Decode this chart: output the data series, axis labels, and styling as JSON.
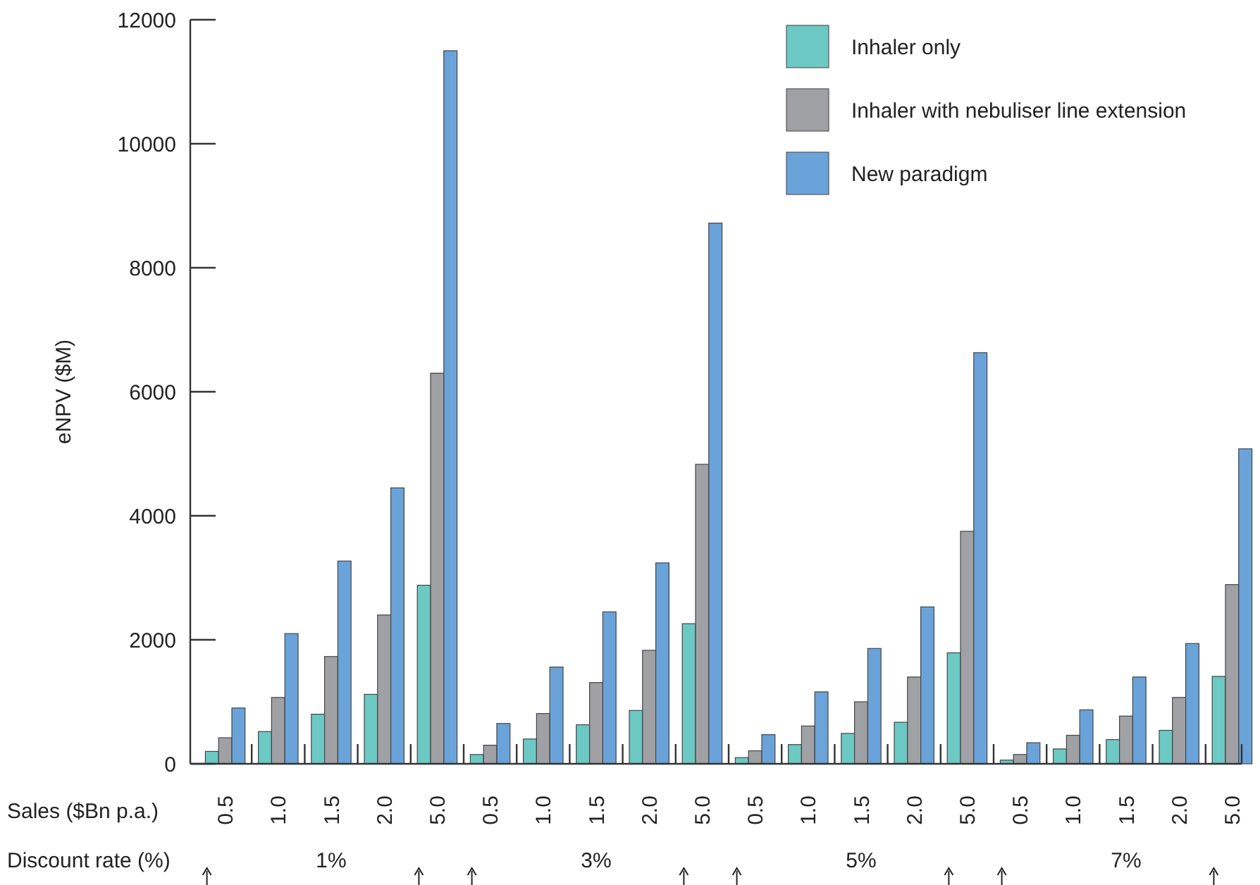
{
  "chart_data": {
    "type": "bar",
    "ylabel": "eNPV ($M)",
    "xlabel": "Sales ($Bn p.a.)",
    "annotations": [
      "Discount rate (%)",
      "1%",
      "3%",
      "5%",
      "7%"
    ],
    "categories": [
      "0.5",
      "1.0",
      "1.5",
      "2.0",
      "5.0",
      "0.5",
      "1.0",
      "1.5",
      "2.0",
      "5.0",
      "0.5",
      "1.0",
      "1.5",
      "2.0",
      "5.0",
      "0.5",
      "1.0",
      "1.5",
      "2.0",
      "5.0"
    ],
    "series": [
      {
        "name": "Inhaler only",
        "color": "#6cc9c4",
        "values": [
          200,
          520,
          800,
          1120,
          2880,
          150,
          400,
          630,
          860,
          2260,
          100,
          310,
          490,
          670,
          1790,
          60,
          240,
          390,
          540,
          1410
        ]
      },
      {
        "name": "Inhaler with nebuliser line extension",
        "color": "#a0a1a5",
        "values": [
          420,
          1070,
          1730,
          2400,
          6300,
          300,
          810,
          1310,
          1830,
          4830,
          210,
          610,
          1000,
          1400,
          3750,
          150,
          460,
          770,
          1070,
          2890
        ]
      },
      {
        "name": "New paradigm",
        "color": "#6aa3da",
        "values": [
          900,
          2100,
          3270,
          4450,
          11500,
          650,
          1560,
          2450,
          3240,
          8720,
          470,
          1160,
          1860,
          2530,
          6630,
          340,
          870,
          1400,
          1940,
          5080
        ]
      }
    ],
    "ylim": [
      0,
      12000
    ],
    "yticks": [
      0,
      2000,
      4000,
      6000,
      8000,
      10000,
      12000
    ],
    "legend": "top right"
  }
}
